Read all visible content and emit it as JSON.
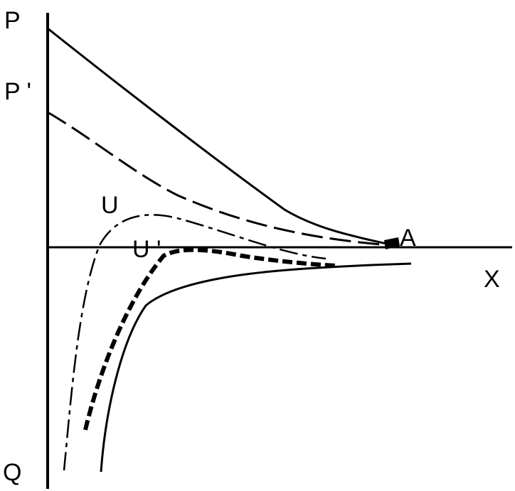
{
  "labels": {
    "p": "P",
    "p_prime": "P '",
    "u": "U",
    "u_prime": "U '",
    "a": "A",
    "x": "X",
    "q": "Q"
  },
  "stroke_color": "#000000",
  "background_color": "#ffffff"
}
